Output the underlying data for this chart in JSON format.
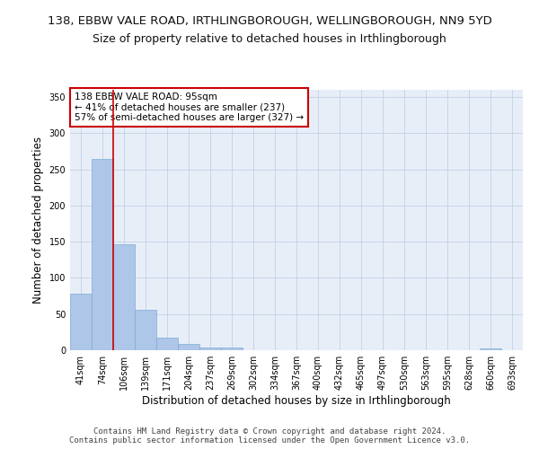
{
  "title1": "138, EBBW VALE ROAD, IRTHLINGBOROUGH, WELLINGBOROUGH, NN9 5YD",
  "title2": "Size of property relative to detached houses in Irthlingborough",
  "xlabel": "Distribution of detached houses by size in Irthlingborough",
  "ylabel": "Number of detached properties",
  "categories": [
    "41sqm",
    "74sqm",
    "106sqm",
    "139sqm",
    "171sqm",
    "204sqm",
    "237sqm",
    "269sqm",
    "302sqm",
    "334sqm",
    "367sqm",
    "400sqm",
    "432sqm",
    "465sqm",
    "497sqm",
    "530sqm",
    "563sqm",
    "595sqm",
    "628sqm",
    "660sqm",
    "693sqm"
  ],
  "bar_values": [
    78,
    264,
    146,
    56,
    18,
    9,
    4,
    4,
    0,
    0,
    0,
    0,
    0,
    0,
    0,
    0,
    0,
    0,
    0,
    3,
    0
  ],
  "bar_color": "#aec6e8",
  "bar_edge_color": "#7aadd4",
  "grid_color": "#c8d4e8",
  "background_color": "#e8eef8",
  "annotation_text": "138 EBBW VALE ROAD: 95sqm\n← 41% of detached houses are smaller (237)\n57% of semi-detached houses are larger (327) →",
  "annotation_box_color": "#ffffff",
  "annotation_border_color": "#cc0000",
  "vline_color": "#cc0000",
  "ylim": [
    0,
    360
  ],
  "yticks": [
    0,
    50,
    100,
    150,
    200,
    250,
    300,
    350
  ],
  "footer": "Contains HM Land Registry data © Crown copyright and database right 2024.\nContains public sector information licensed under the Open Government Licence v3.0.",
  "title1_fontsize": 9.5,
  "title2_fontsize": 9,
  "xlabel_fontsize": 8.5,
  "ylabel_fontsize": 8.5,
  "tick_fontsize": 7,
  "footer_fontsize": 6.5
}
